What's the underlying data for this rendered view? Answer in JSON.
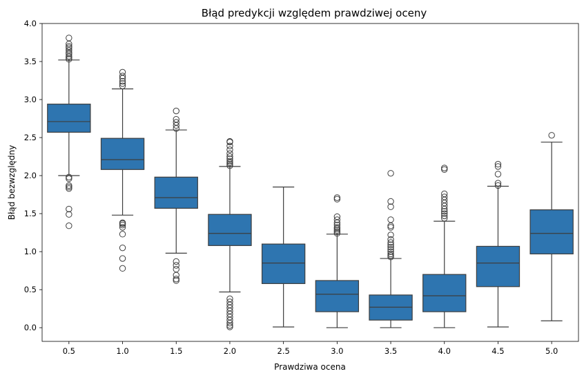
{
  "chart_data": {
    "type": "box",
    "title": "Błąd predykcji względem prawdziwej oceny",
    "xlabel": "Prawdziwa ocena",
    "ylabel": "Błąd bezwzględny",
    "ylim": [
      -0.18,
      4.0
    ],
    "yticks": [
      "0.0",
      "0.5",
      "1.0",
      "1.5",
      "2.0",
      "2.5",
      "3.0",
      "3.5",
      "4.0"
    ],
    "grid": false,
    "color": "#2e75b0",
    "categories": [
      "0.5",
      "1.0",
      "1.5",
      "2.0",
      "2.5",
      "3.0",
      "3.5",
      "4.0",
      "4.5",
      "5.0"
    ],
    "boxes": [
      {
        "x": "0.5",
        "whislo": 2.0,
        "q1": 2.57,
        "med": 2.71,
        "q3": 2.94,
        "whishi": 3.52,
        "fliers": [
          1.34,
          1.49,
          1.56,
          1.83,
          1.85,
          1.87,
          1.96,
          1.98,
          3.53,
          3.55,
          3.57,
          3.6,
          3.62,
          3.65,
          3.68,
          3.7,
          3.73,
          3.81
        ]
      },
      {
        "x": "1.0",
        "whislo": 1.48,
        "q1": 2.08,
        "med": 2.21,
        "q3": 2.49,
        "whishi": 3.14,
        "fliers": [
          0.78,
          0.91,
          1.05,
          1.23,
          1.32,
          1.35,
          1.37,
          1.38,
          3.18,
          3.21,
          3.24,
          3.28,
          3.31,
          3.36
        ]
      },
      {
        "x": "1.5",
        "whislo": 0.98,
        "q1": 1.57,
        "med": 1.71,
        "q3": 1.98,
        "whishi": 2.6,
        "fliers": [
          0.62,
          0.64,
          0.69,
          0.77,
          0.82,
          0.87,
          2.62,
          2.66,
          2.7,
          2.74,
          2.85
        ]
      },
      {
        "x": "2.0",
        "whislo": 0.47,
        "q1": 1.08,
        "med": 1.24,
        "q3": 1.49,
        "whishi": 2.12,
        "fliers": [
          0.01,
          0.03,
          0.06,
          0.1,
          0.14,
          0.18,
          0.22,
          0.26,
          0.3,
          0.34,
          0.38,
          2.13,
          2.15,
          2.17,
          2.19,
          2.22,
          2.25,
          2.29,
          2.34,
          2.39,
          2.44,
          2.45
        ]
      },
      {
        "x": "2.5",
        "whislo": 0.01,
        "q1": 0.58,
        "med": 0.85,
        "q3": 1.1,
        "whishi": 1.85,
        "fliers": []
      },
      {
        "x": "3.0",
        "whislo": 0.0,
        "q1": 0.21,
        "med": 0.44,
        "q3": 0.62,
        "whishi": 1.23,
        "fliers": [
          1.24,
          1.26,
          1.28,
          1.3,
          1.32,
          1.35,
          1.38,
          1.42,
          1.46,
          1.69,
          1.71
        ]
      },
      {
        "x": "3.5",
        "whislo": 0.0,
        "q1": 0.1,
        "med": 0.27,
        "q3": 0.43,
        "whishi": 0.91,
        "fliers": [
          0.93,
          0.95,
          0.97,
          1.0,
          1.03,
          1.06,
          1.09,
          1.12,
          1.16,
          1.22,
          1.32,
          1.34,
          1.42,
          1.59,
          1.66,
          2.03
        ]
      },
      {
        "x": "4.0",
        "whislo": 0.0,
        "q1": 0.21,
        "med": 0.42,
        "q3": 0.7,
        "whishi": 1.4,
        "fliers": [
          1.44,
          1.47,
          1.5,
          1.53,
          1.56,
          1.6,
          1.64,
          1.68,
          1.72,
          1.76,
          2.08,
          2.1
        ]
      },
      {
        "x": "4.5",
        "whislo": 0.01,
        "q1": 0.54,
        "med": 0.85,
        "q3": 1.07,
        "whishi": 1.86,
        "fliers": [
          1.87,
          1.9,
          2.02,
          2.12,
          2.15
        ]
      },
      {
        "x": "5.0",
        "whislo": 0.09,
        "q1": 0.97,
        "med": 1.24,
        "q3": 1.55,
        "whishi": 2.44,
        "fliers": [
          2.53
        ]
      }
    ]
  }
}
